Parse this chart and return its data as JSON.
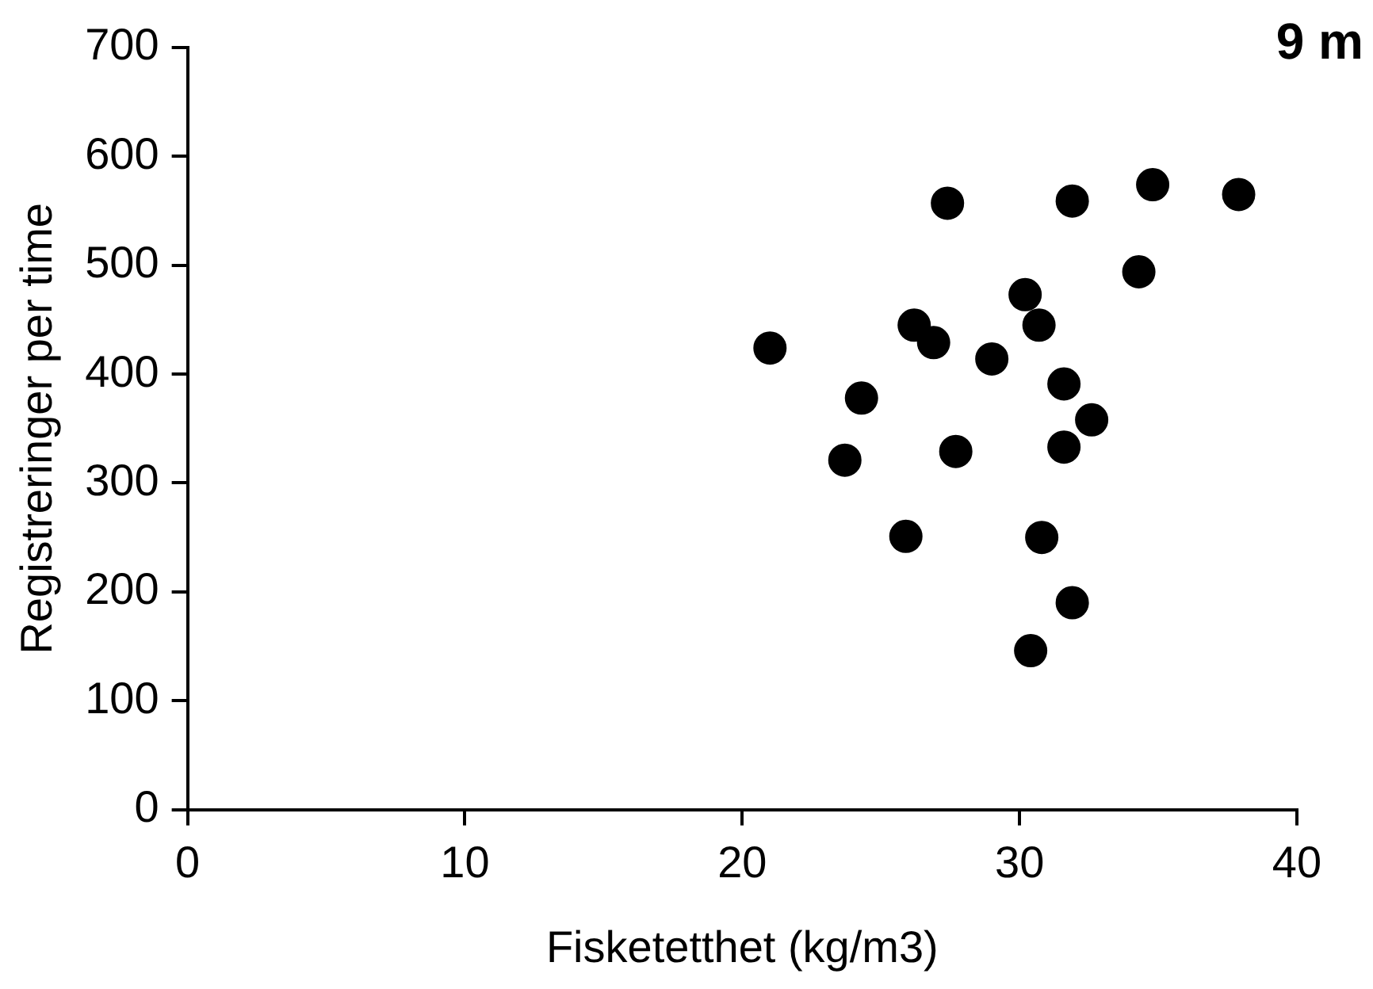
{
  "chart_data": {
    "type": "scatter",
    "title": "9 m",
    "xlabel": "Fisketetthet (kg/m3)",
    "ylabel": "Registreringer per time",
    "x": [
      21.0,
      27.4,
      31.9,
      34.8,
      37.9,
      34.3,
      30.2,
      30.7,
      26.2,
      26.9,
      29.0,
      31.6,
      24.3,
      32.6,
      31.6,
      23.7,
      27.7,
      25.9,
      30.8,
      31.9,
      30.4
    ],
    "values": [
      424,
      557,
      559,
      574,
      565,
      494,
      473,
      445,
      445,
      429,
      414,
      391,
      378,
      358,
      333,
      321,
      329,
      251,
      250,
      190,
      146
    ],
    "color": "#000000",
    "marker": "circle",
    "xlim": [
      0,
      40
    ],
    "xticks": [
      0,
      10,
      20,
      30,
      40
    ],
    "ylim": [
      0,
      700
    ],
    "yticks": [
      0,
      100,
      200,
      300,
      400,
      500,
      600,
      700
    ],
    "grid": false,
    "legend": false
  }
}
